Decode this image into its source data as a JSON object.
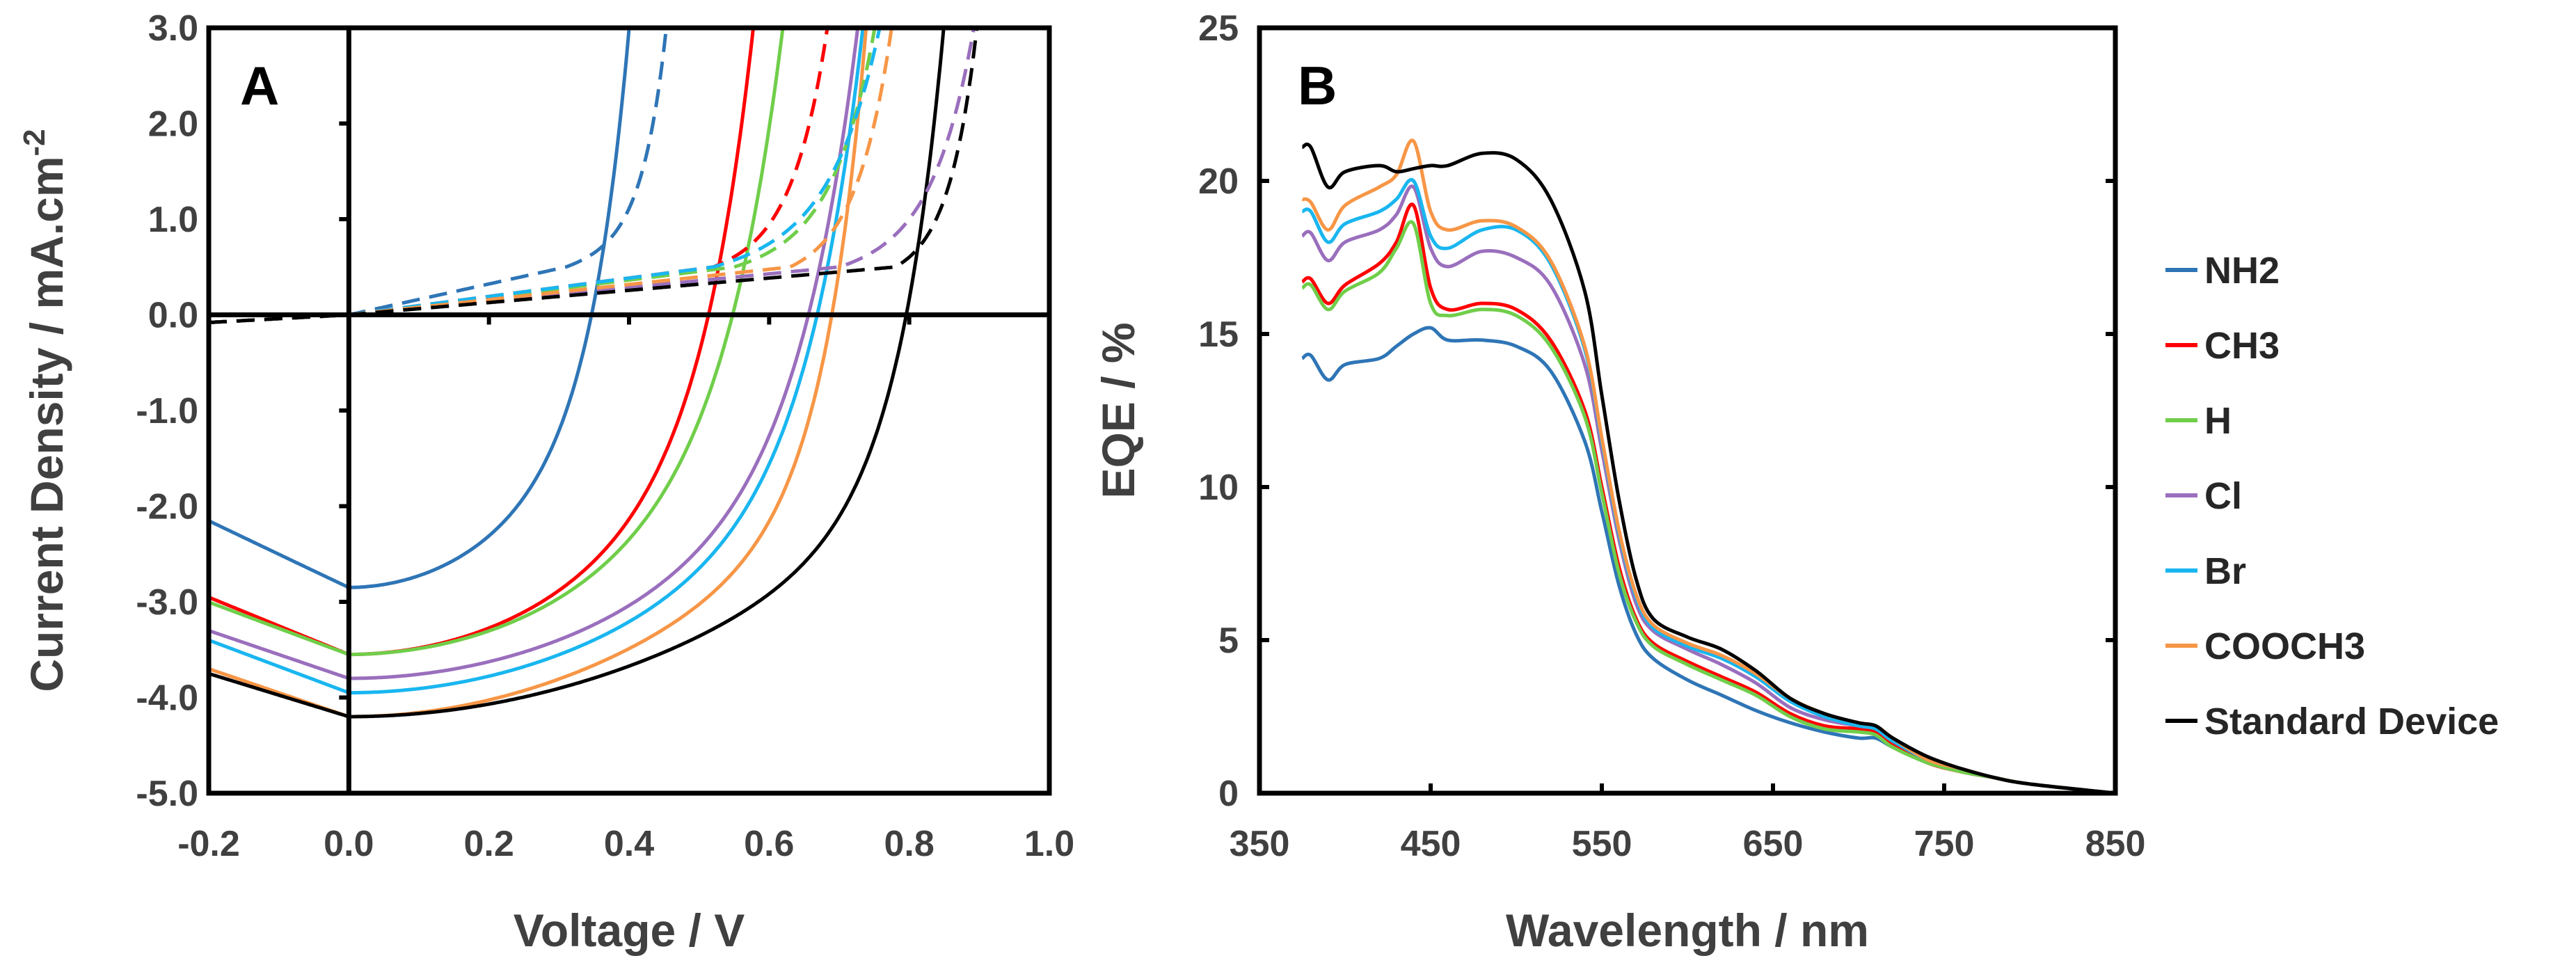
{
  "chart_data": [
    {
      "type": "line",
      "panel_label": "A",
      "xlabel": "Voltage / V",
      "ylabel": "Current Density / mA.cm",
      "ylabel_sup": "-2",
      "xlim": [
        -0.2,
        1.0
      ],
      "ylim": [
        -5.0,
        3.0
      ],
      "x_ticks": [
        "-0.2",
        "0.0",
        "0.2",
        "0.4",
        "0.6",
        "0.8",
        "1.0"
      ],
      "y_ticks": [
        "3.0",
        "2.0",
        "1.0",
        "0.0",
        "-1.0",
        "-2.0",
        "-3.0",
        "-4.0",
        "-5.0"
      ],
      "series": [
        {
          "name": "NH2",
          "color": "#2e75b6",
          "style": "solid",
          "jsc": -2.85,
          "voc": 0.38,
          "jmin": -3.55,
          "k": 0.055
        },
        {
          "name": "CH3",
          "color": "#ff0000",
          "style": "solid",
          "jsc": -3.55,
          "voc": 0.56,
          "jmin": -4.15,
          "k": 0.075
        },
        {
          "name": "H",
          "color": "#70ce4a",
          "style": "solid",
          "jsc": -3.55,
          "voc": 0.6,
          "jmin": -4.1,
          "k": 0.085
        },
        {
          "name": "Cl",
          "color": "#9a6fbd",
          "style": "solid",
          "jsc": -3.8,
          "voc": 0.71,
          "jmin": -4.3,
          "k": 0.085
        },
        {
          "name": "Br",
          "color": "#19b6f0",
          "style": "solid",
          "jsc": -3.95,
          "voc": 0.72,
          "jmin": -4.5,
          "k": 0.08
        },
        {
          "name": "COOCH3",
          "color": "#f79646",
          "style": "solid",
          "jsc": -4.2,
          "voc": 0.73,
          "jmin": -4.7,
          "k": 0.06
        },
        {
          "name": "Standard Device",
          "color": "#000000",
          "style": "solid",
          "jsc": -4.2,
          "voc": 0.84,
          "jmin": -4.65,
          "k": 0.065
        },
        {
          "name": "NH2 dark",
          "color": "#2e75b6",
          "style": "dashed",
          "x0": 0.31,
          "vr": 0.46,
          "k": 0.035
        },
        {
          "name": "CH3 dark",
          "color": "#ff0000",
          "style": "dashed",
          "x0": 0.52,
          "vr": 0.69,
          "k": 0.05
        },
        {
          "name": "H dark",
          "color": "#70ce4a",
          "style": "dashed",
          "x0": 0.55,
          "vr": 0.76,
          "k": 0.06
        },
        {
          "name": "Cl dark",
          "color": "#9a6fbd",
          "style": "dashed",
          "x0": 0.7,
          "vr": 0.9,
          "k": 0.06
        },
        {
          "name": "Br dark",
          "color": "#19b6f0",
          "style": "dashed",
          "x0": 0.52,
          "vr": 0.77,
          "k": 0.07
        },
        {
          "name": "COOCH3 dark",
          "color": "#f79646",
          "style": "dashed",
          "x0": 0.63,
          "vr": 0.78,
          "k": 0.05
        },
        {
          "name": "Standard Device dark",
          "color": "#000000",
          "style": "dashed",
          "x0": 0.78,
          "vr": 0.9,
          "k": 0.04
        }
      ]
    },
    {
      "type": "line",
      "panel_label": "B",
      "xlabel": "Wavelength / nm",
      "ylabel": "EQE / %",
      "xlim": [
        350,
        850
      ],
      "ylim": [
        0,
        25
      ],
      "x_ticks": [
        "350",
        "450",
        "550",
        "650",
        "750",
        "850"
      ],
      "y_ticks": [
        "0",
        "5",
        "10",
        "15",
        "20",
        "25"
      ],
      "legend_position": "right",
      "x": [
        375,
        380,
        390,
        400,
        420,
        430,
        440,
        450,
        460,
        480,
        500,
        520,
        540,
        550,
        560,
        570,
        580,
        600,
        620,
        640,
        660,
        680,
        700,
        710,
        720,
        740,
        760,
        780,
        800,
        850
      ],
      "series": [
        {
          "name": "NH2",
          "color": "#2e75b6",
          "values": [
            14.2,
            14.3,
            13.5,
            14.0,
            14.2,
            14.6,
            15.0,
            15.2,
            14.8,
            14.8,
            14.6,
            13.8,
            11.5,
            9.2,
            6.8,
            5.2,
            4.4,
            3.7,
            3.2,
            2.7,
            2.3,
            2.0,
            1.8,
            1.8,
            1.5,
            1.0,
            0.7,
            0.5,
            0.3,
            0.0
          ]
        },
        {
          "name": "CH3",
          "color": "#ff0000",
          "values": [
            16.7,
            16.8,
            16.0,
            16.6,
            17.3,
            18.0,
            19.2,
            16.5,
            15.8,
            16.0,
            15.8,
            14.8,
            12.5,
            10.0,
            7.4,
            5.7,
            4.9,
            4.3,
            3.8,
            3.3,
            2.6,
            2.2,
            2.1,
            2.0,
            1.6,
            1.0,
            0.7,
            0.5,
            0.3,
            0.0
          ]
        },
        {
          "name": "H",
          "color": "#70ce4a",
          "values": [
            16.5,
            16.6,
            15.8,
            16.4,
            17.0,
            17.8,
            18.6,
            16.0,
            15.6,
            15.8,
            15.6,
            14.6,
            12.3,
            9.8,
            7.2,
            5.6,
            4.8,
            4.2,
            3.7,
            3.2,
            2.5,
            2.1,
            2.0,
            1.9,
            1.5,
            1.0,
            0.7,
            0.5,
            0.3,
            0.0
          ]
        },
        {
          "name": "Cl",
          "color": "#9a6fbd",
          "values": [
            18.2,
            18.3,
            17.4,
            18.0,
            18.4,
            18.9,
            19.8,
            17.8,
            17.2,
            17.7,
            17.5,
            16.6,
            14.0,
            11.2,
            8.3,
            6.2,
            5.3,
            4.7,
            4.2,
            3.6,
            2.8,
            2.4,
            2.2,
            2.1,
            1.7,
            1.1,
            0.8,
            0.5,
            0.3,
            0.0
          ]
        },
        {
          "name": "Br",
          "color": "#19b6f0",
          "values": [
            19.0,
            19.0,
            18.0,
            18.6,
            19.0,
            19.4,
            20.0,
            18.2,
            17.8,
            18.4,
            18.4,
            17.3,
            14.5,
            11.5,
            8.5,
            6.4,
            5.4,
            4.8,
            4.4,
            3.8,
            3.0,
            2.5,
            2.2,
            2.1,
            1.7,
            1.1,
            0.8,
            0.5,
            0.3,
            0.0
          ]
        },
        {
          "name": "COOCH3",
          "color": "#f79646",
          "values": [
            19.4,
            19.3,
            18.4,
            19.2,
            19.8,
            20.2,
            21.3,
            19.0,
            18.4,
            18.7,
            18.5,
            17.4,
            14.6,
            11.6,
            8.6,
            6.5,
            5.5,
            4.9,
            4.5,
            3.9,
            3.1,
            2.6,
            2.3,
            2.2,
            1.8,
            1.1,
            0.8,
            0.5,
            0.3,
            0.0
          ]
        },
        {
          "name": "Standard Device",
          "color": "#000000",
          "values": [
            21.1,
            21.1,
            19.8,
            20.3,
            20.5,
            20.3,
            20.4,
            20.5,
            20.5,
            20.9,
            20.7,
            19.4,
            16.4,
            13.0,
            9.6,
            7.0,
            5.7,
            5.1,
            4.7,
            4.0,
            3.1,
            2.6,
            2.3,
            2.2,
            1.8,
            1.2,
            0.8,
            0.5,
            0.3,
            0.0
          ]
        }
      ]
    }
  ]
}
